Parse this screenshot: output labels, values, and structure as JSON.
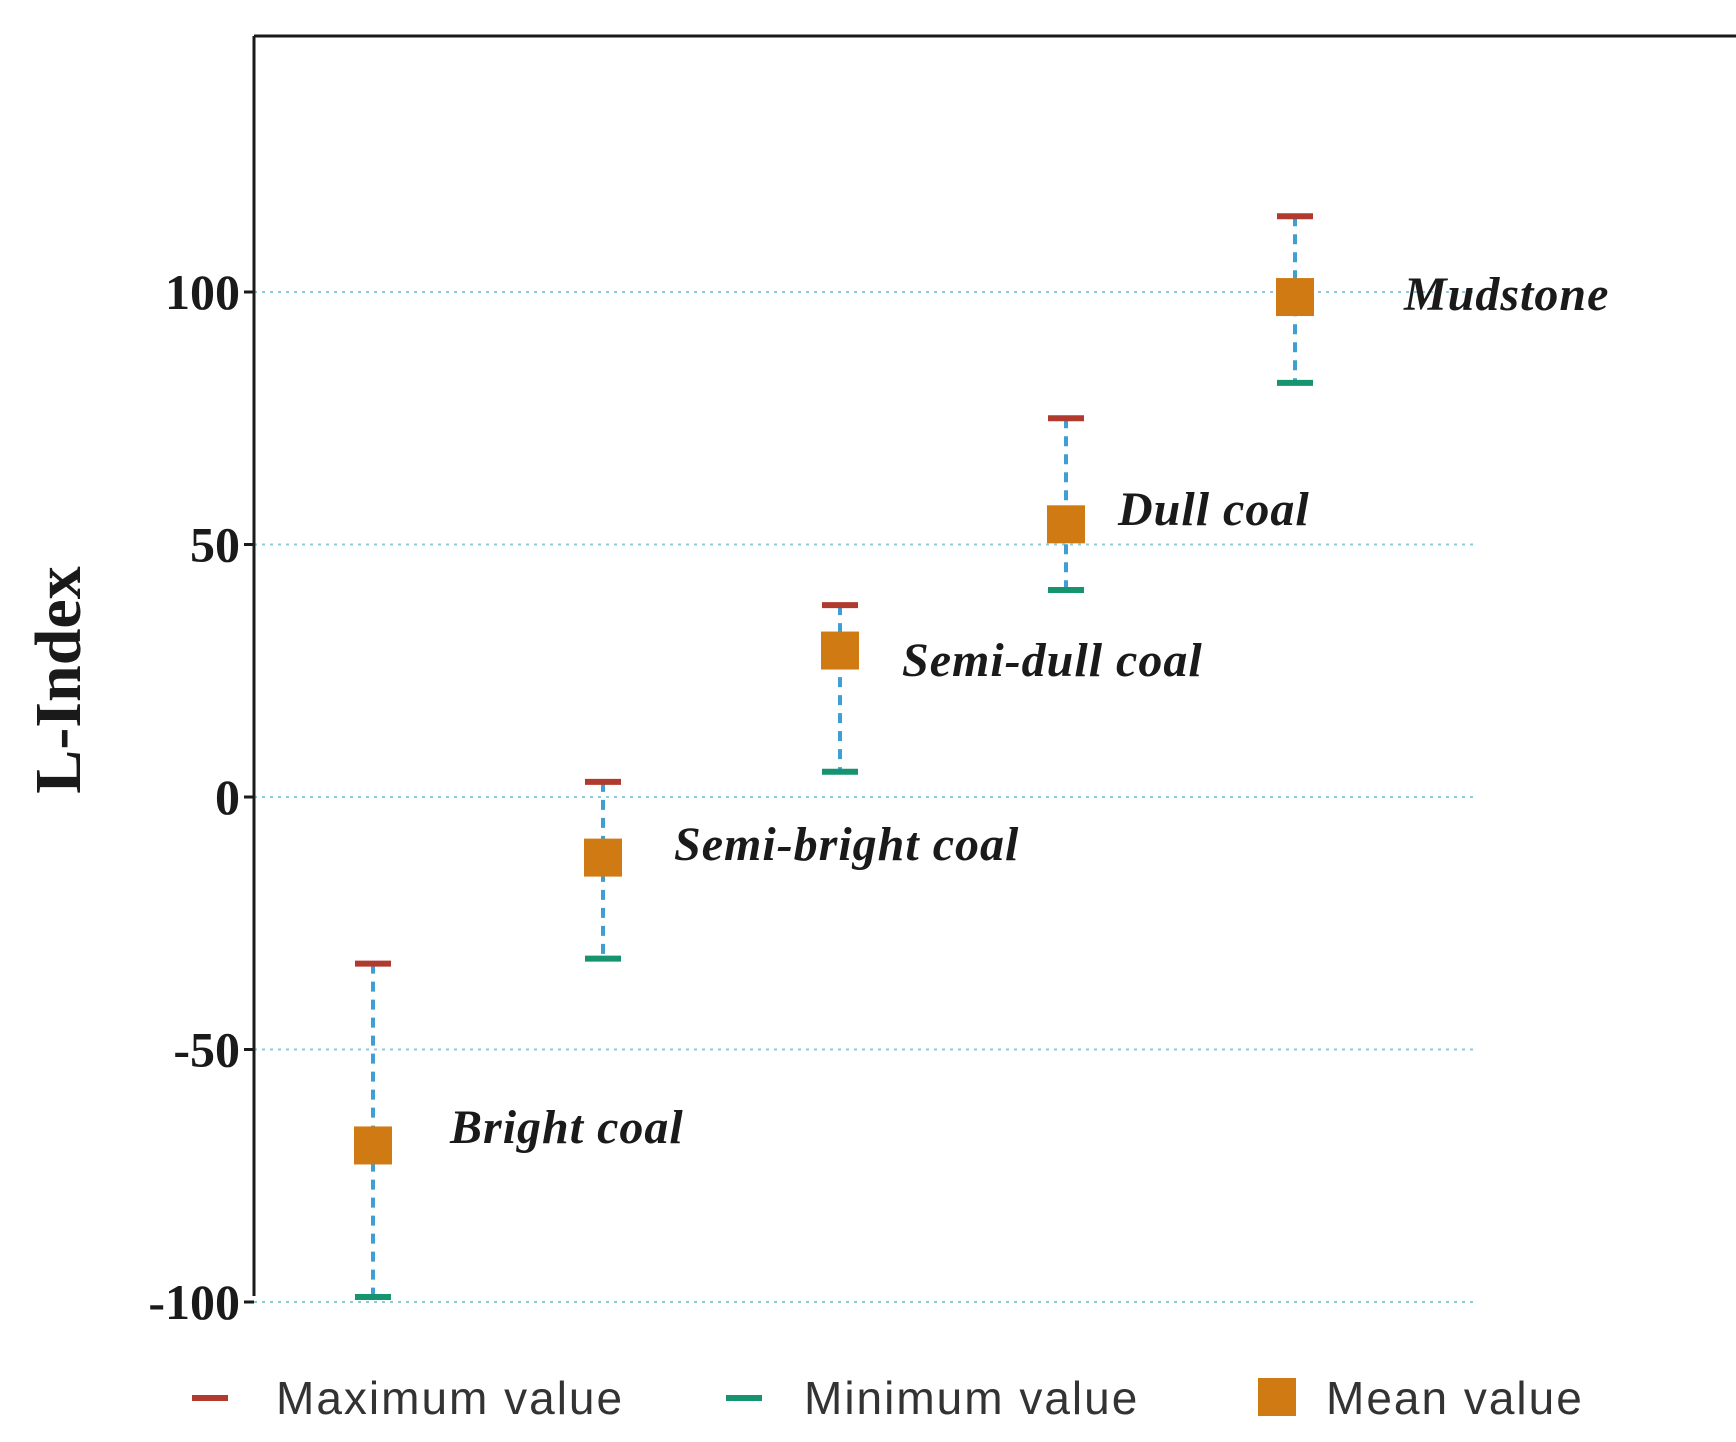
{
  "colors": {
    "max": "#b03a2e",
    "min": "#15946f",
    "mean": "#d07a14",
    "range": "#3f9fd4",
    "grid": "#8fc9de",
    "axis": "#1a1a1a"
  },
  "chart_data": {
    "type": "scatter",
    "title": "",
    "xlabel": "",
    "ylabel": "L-Index",
    "ylim": [
      -100,
      150
    ],
    "yticks": [
      100,
      50,
      0,
      -50,
      -100
    ],
    "ytick_labels": [
      "100",
      "50",
      "0",
      "-50",
      "-100"
    ],
    "grid": true,
    "categories": [
      "Bright coal",
      "Semi-bright coal",
      "Semi-dull coal",
      "Dull coal",
      "Mudstone"
    ],
    "series": [
      {
        "name": "Maximum value",
        "marker": "dash",
        "values": [
          -33,
          3,
          38,
          75,
          115
        ]
      },
      {
        "name": "Minimum value",
        "marker": "dash",
        "values": [
          -99,
          -32,
          5,
          41,
          82
        ]
      },
      {
        "name": "Mean value",
        "marker": "square",
        "values": [
          -69,
          -12,
          29,
          54,
          99
        ]
      }
    ],
    "legend": {
      "position": "bottom",
      "items": [
        "Maximum value",
        "Minimum value",
        "Mean value"
      ]
    }
  }
}
